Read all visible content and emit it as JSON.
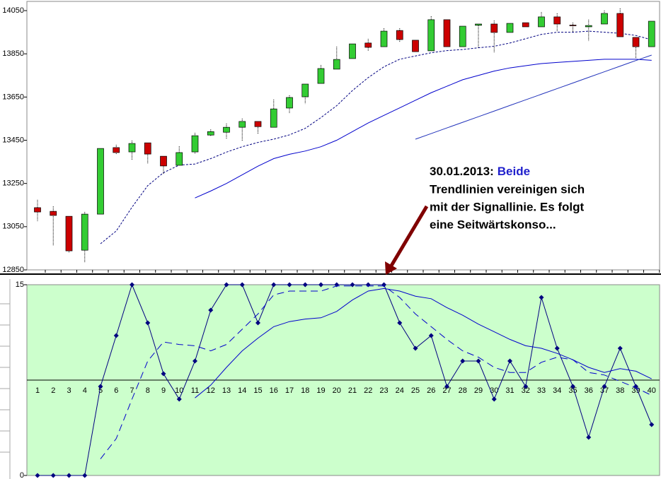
{
  "chart_data": [
    {
      "type": "candlestick",
      "categories": [
        "1",
        "2",
        "3",
        "4",
        "5",
        "6",
        "7",
        "8",
        "9",
        "10",
        "11",
        "12",
        "13",
        "14",
        "15",
        "16",
        "17",
        "18",
        "19",
        "20",
        "21",
        "22",
        "23",
        "24",
        "25",
        "26",
        "27",
        "28",
        "29",
        "30",
        "31",
        "32",
        "33",
        "34",
        "35",
        "36",
        "37",
        "38",
        "39",
        "40"
      ],
      "open": [
        13138,
        13121,
        13098,
        12941,
        13108,
        13416,
        13396,
        13438,
        13376,
        13334,
        13396,
        13474,
        13487,
        13510,
        13537,
        13510,
        13599,
        13651,
        13713,
        13779,
        13828,
        13900,
        13883,
        13958,
        13913,
        13864,
        14008,
        13883,
        13982,
        13988,
        13949,
        13994,
        13975,
        14021,
        13983,
        13975,
        13988,
        14037,
        13926,
        13883
      ],
      "high": [
        13174,
        13144,
        13098,
        13118,
        13412,
        13429,
        13448,
        13438,
        13376,
        13422,
        13484,
        13500,
        13527,
        13550,
        13537,
        13638,
        13658,
        13710,
        13798,
        13883,
        13896,
        13919,
        13968,
        13968,
        13913,
        14024,
        14008,
        13978,
        13988,
        14004,
        13991,
        13994,
        14043,
        14037,
        13994,
        14008,
        14050,
        14060,
        13926,
        14001
      ],
      "low": [
        13075,
        12961,
        12928,
        12883,
        13108,
        13383,
        13360,
        13340,
        13291,
        13334,
        13386,
        13468,
        13458,
        13445,
        13478,
        13510,
        13576,
        13618,
        13713,
        13779,
        13828,
        13864,
        13883,
        13903,
        13860,
        13864,
        13883,
        13883,
        13877,
        13857,
        13949,
        13975,
        13975,
        13952,
        13952,
        13909,
        13988,
        13929,
        13831,
        13883
      ],
      "close": [
        13118,
        13102,
        12938,
        13108,
        13412,
        13393,
        13435,
        13386,
        13331,
        13393,
        13471,
        13490,
        13510,
        13537,
        13513,
        13595,
        13648,
        13710,
        13782,
        13824,
        13896,
        13880,
        13955,
        13916,
        13860,
        14008,
        13883,
        13978,
        13988,
        13949,
        13991,
        13975,
        14021,
        13988,
        13980,
        13981,
        14037,
        13929,
        13883,
        14001
      ],
      "up_color": "#33cc33",
      "down_color": "#cc0000",
      "series": [
        {
          "color": "#000080",
          "dashed": true,
          "values": [
            null,
            null,
            null,
            null,
            12971,
            13030,
            13140,
            13240,
            13300,
            13335,
            13340,
            13365,
            13395,
            13420,
            13440,
            13455,
            13475,
            13505,
            13555,
            13610,
            13680,
            13740,
            13790,
            13825,
            13840,
            13855,
            13865,
            13870,
            13878,
            13885,
            13900,
            13920,
            13940,
            13950,
            13950,
            13955,
            13950,
            13945,
            13935,
            13915
          ]
        },
        {
          "color": "#0000cc",
          "dashed": false,
          "values": [
            null,
            null,
            null,
            null,
            null,
            null,
            null,
            null,
            null,
            null,
            13183,
            13215,
            13250,
            13290,
            13330,
            13365,
            13385,
            13400,
            13420,
            13450,
            13490,
            13530,
            13565,
            13600,
            13635,
            13670,
            13700,
            13730,
            13750,
            13770,
            13785,
            13795,
            13805,
            13810,
            13815,
            13820,
            13825,
            13825,
            13825,
            13820
          ]
        },
        {
          "color": "#2233bb",
          "dashed": false,
          "values": [
            null,
            null,
            null,
            null,
            null,
            null,
            null,
            null,
            null,
            null,
            null,
            null,
            null,
            null,
            null,
            null,
            null,
            null,
            null,
            null,
            null,
            null,
            null,
            null,
            13455,
            13481,
            13507,
            13533,
            13559,
            13585,
            13611,
            13637,
            13663,
            13689,
            13715,
            13741,
            13767,
            13793,
            13819,
            13844
          ]
        }
      ],
      "ylim": [
        12850,
        14090
      ],
      "yticks": [
        12850,
        13050,
        13250,
        13450,
        13650,
        13850,
        14050
      ],
      "annotation": {
        "date": "30.01.2013:",
        "lines": [
          "Beide",
          "Trendlinien vereinigen sich",
          "mit der Signallinie. Es folgt",
          "eine Seitwärtskonso..."
        ]
      }
    },
    {
      "type": "line",
      "categories": [
        "1",
        "2",
        "3",
        "4",
        "5",
        "6",
        "7",
        "8",
        "9",
        "10",
        "11",
        "12",
        "13",
        "14",
        "15",
        "16",
        "17",
        "18",
        "19",
        "20",
        "21",
        "22",
        "23",
        "24",
        "25",
        "26",
        "27",
        "28",
        "29",
        "30",
        "31",
        "32",
        "33",
        "34",
        "35",
        "36",
        "37",
        "38",
        "39",
        "40"
      ],
      "series": [
        {
          "color": "#000080",
          "dashed": false,
          "markers": true,
          "values": [
            0,
            0,
            0,
            0,
            7,
            11,
            15,
            12,
            8,
            6,
            9,
            13,
            15,
            15,
            12,
            15,
            15,
            15,
            15,
            15,
            15,
            15,
            15,
            12,
            10,
            11,
            7,
            9,
            9,
            6,
            9,
            7,
            14,
            10,
            7,
            3,
            7,
            10,
            7,
            4
          ]
        },
        {
          "color": "#0000cc",
          "dashed": true,
          "markers": false,
          "values": [
            null,
            null,
            null,
            null,
            1.3,
            2.9,
            6,
            9,
            10.5,
            10.3,
            10.2,
            9.8,
            10.3,
            11.5,
            12.7,
            14.2,
            14.5,
            14.5,
            14.5,
            14.9,
            14.9,
            14.9,
            14.9,
            14,
            12.7,
            11.7,
            10.7,
            9.8,
            9.3,
            8.5,
            8.1,
            8.1,
            8.9,
            9.3,
            9.1,
            8.1,
            7.9,
            7.4,
            6.9,
            6.3
          ]
        },
        {
          "color": "#0000cc",
          "dashed": false,
          "markers": false,
          "values": [
            null,
            null,
            null,
            null,
            null,
            null,
            null,
            null,
            null,
            null,
            6.1,
            7.1,
            8.5,
            9.8,
            10.8,
            11.7,
            12.1,
            12.3,
            12.4,
            12.9,
            13.8,
            14.5,
            14.7,
            14.5,
            14.1,
            13.9,
            13.2,
            12.6,
            11.9,
            11.3,
            10.7,
            10.2,
            10,
            9.6,
            9.1,
            8.5,
            8.1,
            8.4,
            8.2,
            7.6
          ]
        }
      ],
      "hline": 7.5,
      "ylim": [
        0,
        15
      ],
      "yticks": [
        0,
        15
      ],
      "background": "#ccffcc"
    }
  ]
}
